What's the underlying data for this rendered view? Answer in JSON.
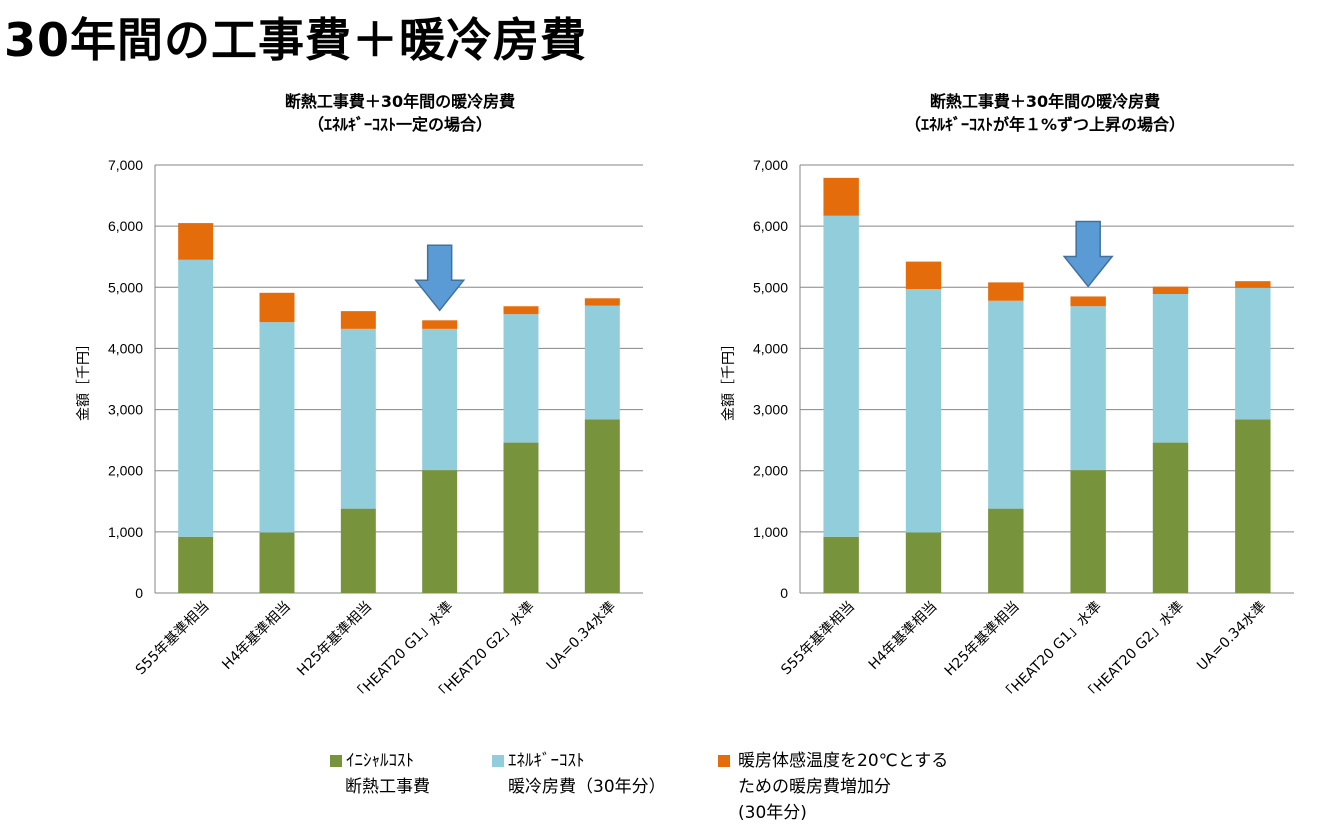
{
  "page": {
    "title": "30年間の工事費＋暖冷房費"
  },
  "colors": {
    "initial": "#77933C",
    "energy": "#92CDDC",
    "extra": "#E46C0A",
    "arrow": "#5B9BD5",
    "arrow_edge": "#41719C",
    "grid": "#868686"
  },
  "charts": [
    {
      "title_line1": "断熱工事費＋30年間の暖冷房費",
      "title_line2": "（ｴﾈﾙｷﾞｰｺｽﾄ一定の場合）",
      "ylabel": "金額［千円］",
      "arrow_category_index": 3
    },
    {
      "title_line1": "断熱工事費＋30年間の暖冷房費",
      "title_line2": "（ｴﾈﾙｷﾞｰｺｽﾄが年１%ずつ上昇の場合）",
      "ylabel": "金額［千円］",
      "arrow_category_index": 3
    }
  ],
  "legend": [
    {
      "key": "initial",
      "line1": "ｲﾆｼｬﾙｺｽﾄ",
      "line2": "断熱工事費"
    },
    {
      "key": "energy",
      "line1": "ｴﾈﾙｷﾞｰｺｽﾄ",
      "line2": "暖冷房費（30年分）"
    },
    {
      "key": "extra",
      "line1": "暖房体感温度を20℃とする",
      "line2": "ための暖房費増加分",
      "line3": "(30年分)"
    }
  ],
  "chart_data": [
    {
      "type": "bar",
      "stacked": true,
      "title": "断熱工事費＋30年間の暖冷房費（ｴﾈﾙｷﾞｰｺｽﾄ一定の場合）",
      "ylabel": "金額［千円］",
      "ylim": [
        0,
        7000
      ],
      "yticks": [
        "0",
        "1,000",
        "2,000",
        "3,000",
        "4,000",
        "5,000",
        "6,000",
        "7,000"
      ],
      "grid": true,
      "categories": [
        "S55年基準相当",
        "H4年基準相当",
        "H25年基準相当",
        "「HEAT20 G1」水準",
        "「HEAT20 G2」水準",
        "UA=0.34水準"
      ],
      "series": [
        {
          "name": "ｲﾆｼｬﾙｺｽﾄ 断熱工事費",
          "key": "initial",
          "values": [
            920,
            990,
            1380,
            2010,
            2460,
            2840
          ]
        },
        {
          "name": "ｴﾈﾙｷﾞｰｺｽﾄ 暖冷房費（30年分）",
          "key": "energy",
          "values": [
            4530,
            3440,
            2940,
            2310,
            2100,
            1860
          ]
        },
        {
          "name": "暖房体感温度を20℃とするための暖房費増加分 (30年分)",
          "key": "extra",
          "values": [
            600,
            480,
            290,
            140,
            130,
            120
          ]
        }
      ]
    },
    {
      "type": "bar",
      "stacked": true,
      "title": "断熱工事費＋30年間の暖冷房費（ｴﾈﾙｷﾞｰｺｽﾄが年１%ずつ上昇の場合）",
      "ylabel": "金額［千円］",
      "ylim": [
        0,
        7000
      ],
      "yticks": [
        "0",
        "1,000",
        "2,000",
        "3,000",
        "4,000",
        "5,000",
        "6,000",
        "7,000"
      ],
      "grid": true,
      "categories": [
        "S55年基準相当",
        "H4年基準相当",
        "H25年基準相当",
        "「HEAT20 G1」水準",
        "「HEAT20 G2」水準",
        "UA=0.34水準"
      ],
      "series": [
        {
          "name": "ｲﾆｼｬﾙｺｽﾄ 断熱工事費",
          "key": "initial",
          "values": [
            920,
            990,
            1380,
            2010,
            2460,
            2840
          ]
        },
        {
          "name": "ｴﾈﾙｷﾞｰｺｽﾄ 暖冷房費（30年分）",
          "key": "energy",
          "values": [
            5250,
            3980,
            3400,
            2680,
            2430,
            2150
          ]
        },
        {
          "name": "暖房体感温度を20℃とするための暖房費増加分 (30年分)",
          "key": "extra",
          "values": [
            620,
            450,
            300,
            160,
            120,
            110
          ]
        }
      ]
    }
  ]
}
